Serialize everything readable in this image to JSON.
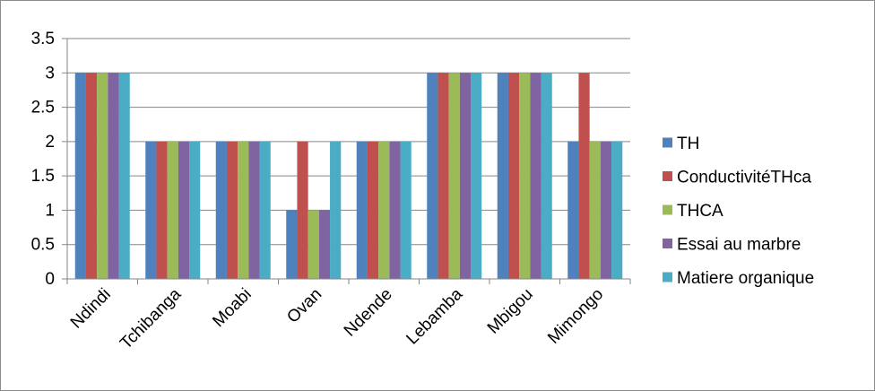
{
  "chart_data": {
    "type": "bar",
    "title": "",
    "xlabel": "",
    "ylabel": "",
    "categories": [
      "Ndindi",
      "Tchibanga",
      "Moabi",
      "Ovan",
      "Ndende",
      "Lebamba",
      "Mbigou",
      "Mimongo"
    ],
    "series": [
      {
        "name": "TH",
        "color": "#4f81bd",
        "values": [
          3,
          2,
          2,
          1,
          2,
          3,
          3,
          2
        ]
      },
      {
        "name": "ConductivitéTHca",
        "color": "#c0504d",
        "values": [
          3,
          2,
          2,
          2,
          2,
          3,
          3,
          3
        ]
      },
      {
        "name": "THCA",
        "color": "#9bbb59",
        "values": [
          3,
          2,
          2,
          1,
          2,
          3,
          3,
          2
        ]
      },
      {
        "name": "Essai au marbre",
        "color": "#8064a2",
        "values": [
          3,
          2,
          2,
          1,
          2,
          3,
          3,
          2
        ]
      },
      {
        "name": "Matiere organique",
        "color": "#4bacc6",
        "values": [
          3,
          2,
          2,
          2,
          2,
          3,
          3,
          2
        ]
      }
    ],
    "ylim": [
      0,
      3.5
    ],
    "yticks": [
      "0",
      "0.5",
      "1",
      "1.5",
      "2",
      "2.5",
      "3",
      "3.5"
    ],
    "grid": true,
    "legend_position": "right"
  }
}
